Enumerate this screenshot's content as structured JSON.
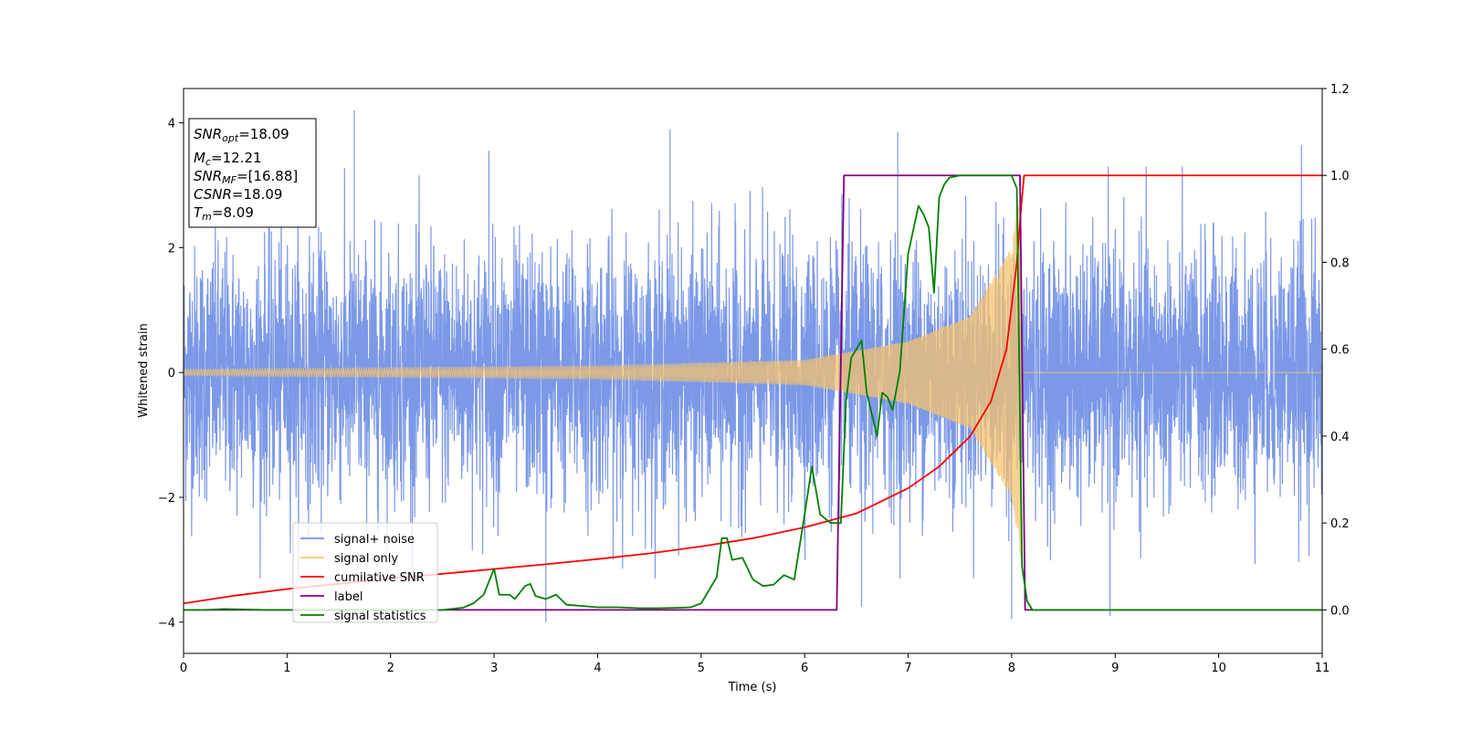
{
  "chart_data": {
    "type": "line",
    "xlabel": "Time (s)",
    "ylabel": "Whitened strain",
    "xlim": [
      0,
      11
    ],
    "ylim_left": [
      -4.5,
      4.55
    ],
    "ylim_right": [
      -0.1,
      1.2
    ],
    "x_ticks": [
      "0",
      "1",
      "2",
      "3",
      "4",
      "5",
      "6",
      "7",
      "8",
      "9",
      "10",
      "11"
    ],
    "y_left_ticks": [
      "−4",
      "−2",
      "0",
      "2",
      "4"
    ],
    "y_right_ticks": [
      "0.0",
      "0.2",
      "0.4",
      "0.6",
      "0.8",
      "1.0",
      "1.2"
    ],
    "grid": false,
    "legend_position": "lower-left",
    "legend": [
      {
        "name": "signal+ noise",
        "color": "#7593e7"
      },
      {
        "name": "signal only",
        "color": "#f5c36e"
      },
      {
        "name": "cumilative SNR",
        "color": "#ff0000"
      },
      {
        "name": "label",
        "color": "#800080"
      },
      {
        "name": "signal statistics",
        "color": "#008000"
      }
    ],
    "annotation": {
      "snr_opt": {
        "name": "SNR",
        "sub": "opt",
        "value": "=18.09"
      },
      "mc": {
        "name": "M",
        "sub": "c",
        "value": "=12.21"
      },
      "snr_mf": {
        "name": "SNR",
        "sub": "MF",
        "value": "=[16.88]"
      },
      "csnr": {
        "name": "CSNR",
        "value": "=18.09"
      },
      "tm": {
        "name": "T",
        "sub": "m",
        "value": "=8.09"
      }
    },
    "series": [
      {
        "name": "signal+ noise",
        "axis": "left",
        "description_level": "noise band",
        "noise_std": 1.0,
        "x_range": [
          0,
          11
        ],
        "spikes": [
          {
            "x": 1.65,
            "y": 4.2
          },
          {
            "x": 2.95,
            "y": 3.55
          },
          {
            "x": 3.5,
            "y": -4.0
          },
          {
            "x": 4.7,
            "y": 3.9
          },
          {
            "x": 6.9,
            "y": 3.85
          },
          {
            "x": 8.0,
            "y": -3.95
          },
          {
            "x": 8.95,
            "y": -3.9
          },
          {
            "x": 10.8,
            "y": 3.65
          },
          {
            "x": 6.55,
            "y": -3.75
          }
        ]
      },
      {
        "name": "signal only",
        "axis": "left",
        "t_merger": 8.09,
        "amplitude_at": [
          [
            0,
            0.05
          ],
          [
            4,
            0.1
          ],
          [
            6,
            0.2
          ],
          [
            7,
            0.5
          ],
          [
            7.6,
            0.9
          ],
          [
            8.0,
            2.0
          ],
          [
            8.09,
            3.0
          ]
        ]
      },
      {
        "name": "cumilative SNR",
        "axis": "right",
        "x": [
          0,
          0.5,
          1,
          1.5,
          2,
          2.5,
          3,
          3.5,
          4,
          4.5,
          5,
          5.5,
          6,
          6.5,
          7,
          7.3,
          7.6,
          7.8,
          7.95,
          8.05,
          8.1,
          8.12,
          11
        ],
        "y": [
          0.015,
          0.033,
          0.048,
          0.06,
          0.072,
          0.083,
          0.094,
          0.105,
          0.117,
          0.13,
          0.146,
          0.165,
          0.19,
          0.222,
          0.28,
          0.33,
          0.4,
          0.48,
          0.6,
          0.8,
          0.95,
          1.0,
          1.0
        ]
      },
      {
        "name": "label",
        "axis": "right",
        "x": [
          0,
          6.31,
          6.38,
          8.08,
          8.13,
          11
        ],
        "y": [
          0,
          0,
          1.0,
          1.0,
          0,
          0
        ]
      },
      {
        "name": "signal statistics",
        "axis": "right",
        "x": [
          0,
          0.2,
          0.4,
          0.6,
          0.8,
          1.0,
          1.5,
          2.0,
          2.5,
          2.7,
          2.8,
          2.9,
          3.0,
          3.05,
          3.15,
          3.2,
          3.3,
          3.35,
          3.4,
          3.5,
          3.6,
          3.7,
          4.0,
          4.2,
          4.4,
          4.6,
          4.8,
          4.9,
          5.0,
          5.15,
          5.2,
          5.25,
          5.3,
          5.4,
          5.5,
          5.6,
          5.7,
          5.8,
          5.9,
          6.0,
          6.07,
          6.15,
          6.25,
          6.35,
          6.4,
          6.45,
          6.55,
          6.6,
          6.7,
          6.75,
          6.8,
          6.85,
          6.92,
          7.0,
          7.1,
          7.15,
          7.2,
          7.25,
          7.3,
          7.35,
          7.4,
          7.5,
          7.6,
          7.8,
          8.0,
          8.05,
          8.1,
          8.15,
          8.2,
          8.3,
          8.5,
          9,
          10,
          11
        ],
        "y": [
          0.0,
          0.0,
          0.002,
          0.001,
          0.0,
          0.0,
          0.0,
          0.0,
          0.0,
          0.005,
          0.015,
          0.035,
          0.095,
          0.035,
          0.035,
          0.025,
          0.055,
          0.06,
          0.032,
          0.025,
          0.035,
          0.012,
          0.006,
          0.006,
          0.004,
          0.004,
          0.005,
          0.006,
          0.015,
          0.075,
          0.165,
          0.165,
          0.115,
          0.12,
          0.07,
          0.055,
          0.058,
          0.08,
          0.07,
          0.22,
          0.33,
          0.22,
          0.2,
          0.2,
          0.48,
          0.58,
          0.62,
          0.5,
          0.4,
          0.5,
          0.49,
          0.46,
          0.55,
          0.82,
          0.93,
          0.91,
          0.88,
          0.73,
          0.95,
          0.98,
          0.995,
          1.0,
          1.0,
          1.0,
          1.0,
          0.97,
          0.1,
          0.02,
          0.0,
          0.0,
          0.0,
          0.0,
          0.0,
          0.0
        ]
      }
    ]
  }
}
